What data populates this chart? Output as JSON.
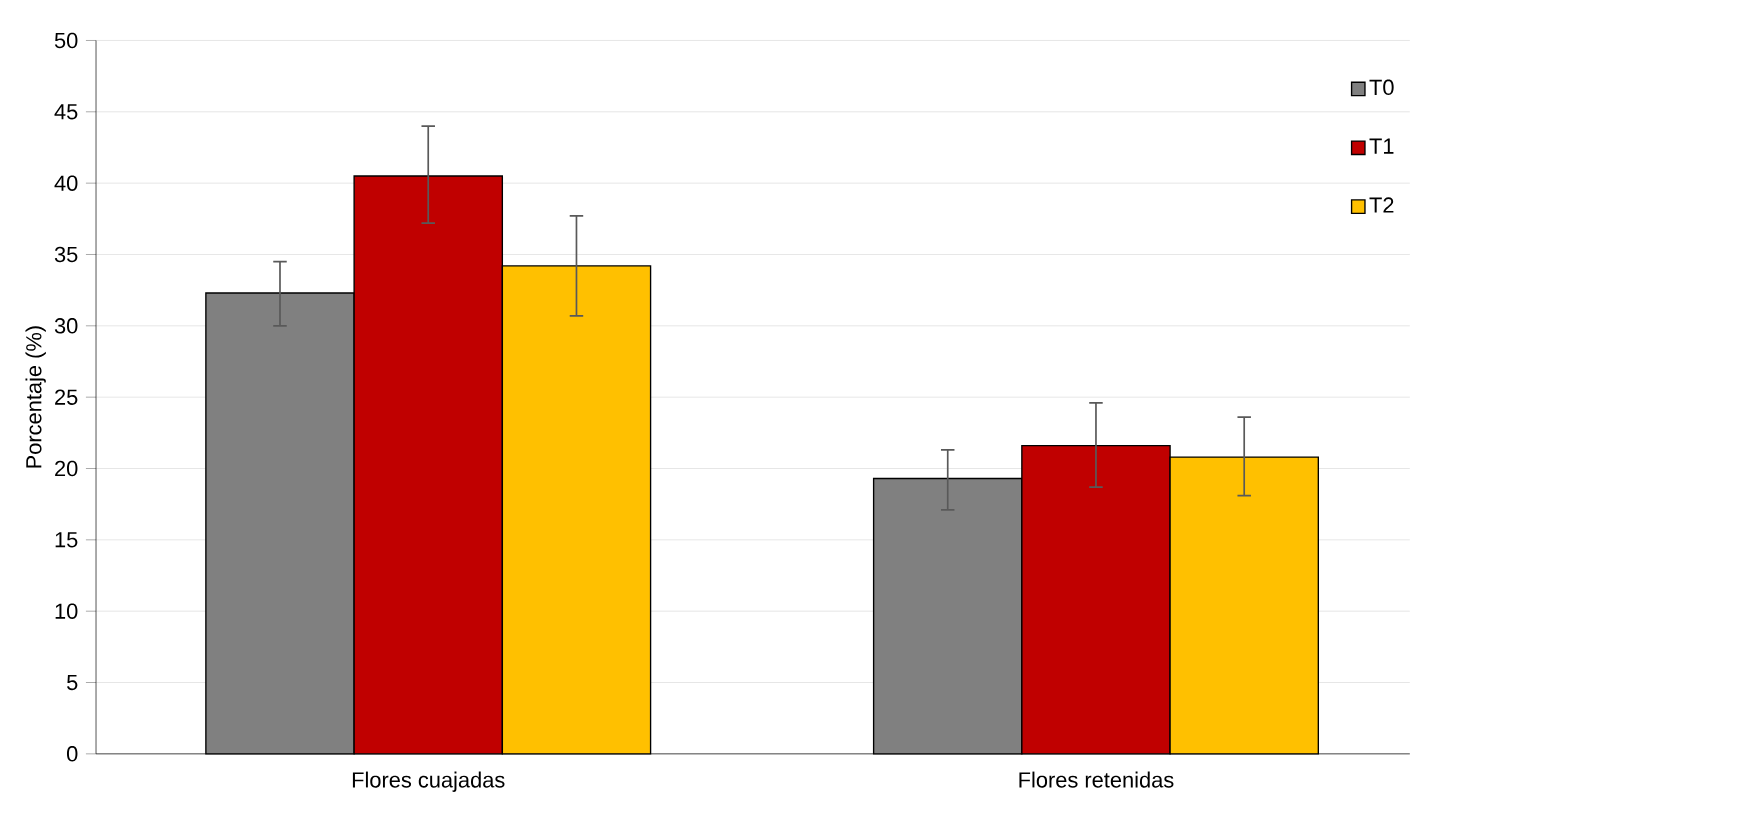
{
  "chart_data": {
    "type": "bar",
    "ylabel": "Porcentaje (%)",
    "categories": [
      "Flores cuajadas",
      "Flores retenidas"
    ],
    "series": [
      {
        "name": "T0",
        "color": "#808080",
        "values": [
          32.3,
          19.3
        ],
        "errors": [
          [
            30.0,
            34.5
          ],
          [
            17.1,
            21.3
          ]
        ]
      },
      {
        "name": "T1",
        "color": "#c00000",
        "values": [
          40.5,
          21.6
        ],
        "errors": [
          [
            37.2,
            44.0
          ],
          [
            18.7,
            24.6
          ]
        ]
      },
      {
        "name": "T2",
        "color": "#ffc000",
        "values": [
          34.2,
          20.8
        ],
        "errors": [
          [
            30.7,
            37.7
          ],
          [
            18.1,
            23.6
          ]
        ]
      }
    ],
    "ylim": [
      0,
      50
    ],
    "yticks": [
      0,
      5,
      10,
      15,
      20,
      25,
      30,
      35,
      40,
      45,
      50
    ],
    "grid": "y",
    "legend": "top right"
  }
}
